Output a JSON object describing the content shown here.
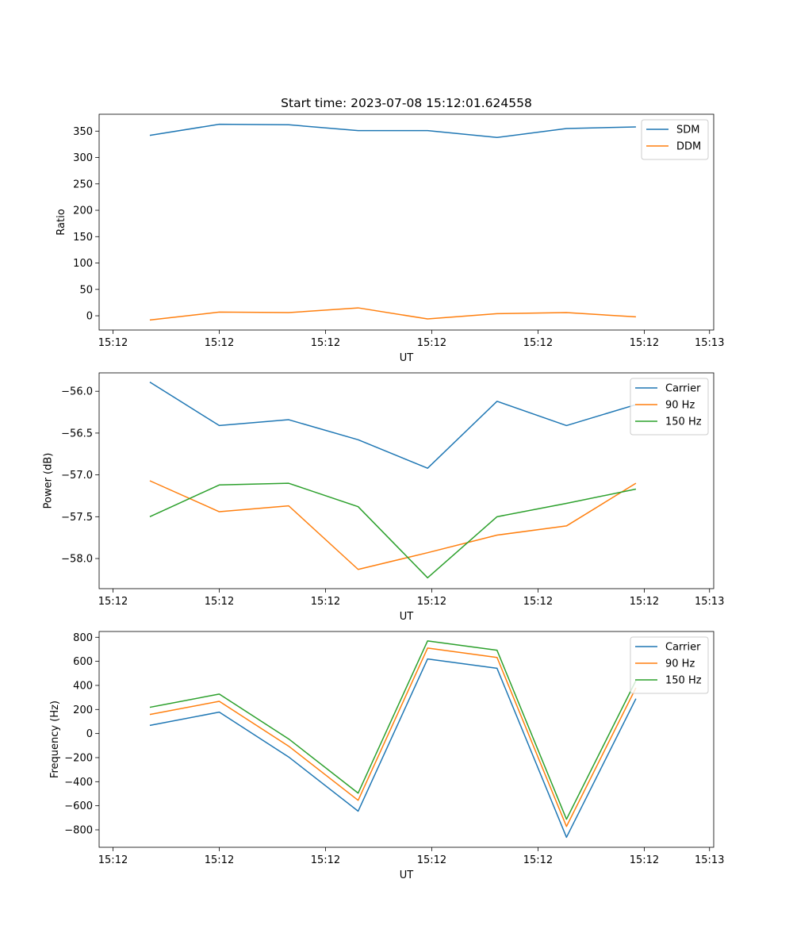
{
  "colors": {
    "blue": "#1f77b4",
    "orange": "#ff7f0e",
    "green": "#2ca02c"
  },
  "chart_data": [
    {
      "type": "line",
      "title": "Start time: 2023-07-08 15:12:01.624558",
      "xlabel": "UT",
      "ylabel": "Ratio",
      "x": [
        1,
        2,
        3,
        4,
        5,
        6,
        7,
        8
      ],
      "xlim": [
        0.27,
        9.12
      ],
      "xticks": [
        0.47,
        2.0,
        3.53,
        5.06,
        6.59,
        8.12,
        9.06
      ],
      "xticklabels": [
        "15:12",
        "15:12",
        "15:12",
        "15:12",
        "15:12",
        "15:12",
        "15:13"
      ],
      "ylim": [
        -27,
        382
      ],
      "yticks": [
        0,
        50,
        100,
        150,
        200,
        250,
        300,
        350
      ],
      "yticklabels": [
        "0",
        "50",
        "100",
        "150",
        "200",
        "250",
        "300",
        "350"
      ],
      "legend_position": "top-right",
      "series": [
        {
          "name": "SDM",
          "color": "blue",
          "values": [
            342,
            363,
            362,
            351,
            351,
            338,
            355,
            358
          ]
        },
        {
          "name": "DDM",
          "color": "orange",
          "values": [
            -8,
            7,
            6,
            15,
            -6,
            4,
            6,
            -2
          ]
        }
      ]
    },
    {
      "type": "line",
      "title": "",
      "xlabel": "UT",
      "ylabel": "Power (dB)",
      "x": [
        1,
        2,
        3,
        4,
        5,
        6,
        7,
        8
      ],
      "xlim": [
        0.27,
        9.12
      ],
      "xticks": [
        0.47,
        2.0,
        3.53,
        5.06,
        6.59,
        8.12,
        9.06
      ],
      "xticklabels": [
        "15:12",
        "15:12",
        "15:12",
        "15:12",
        "15:12",
        "15:12",
        "15:13"
      ],
      "ylim": [
        -58.36,
        -55.78
      ],
      "yticks": [
        -58.0,
        -57.5,
        -57.0,
        -56.5,
        -56.0
      ],
      "yticklabels": [
        "−58.0",
        "−57.5",
        "−57.0",
        "−56.5",
        "−56.0"
      ],
      "legend_position": "top-right",
      "series": [
        {
          "name": "Carrier",
          "color": "blue",
          "values": [
            -55.89,
            -56.41,
            -56.34,
            -56.58,
            -56.92,
            -56.12,
            -56.41,
            -56.16
          ]
        },
        {
          "name": "90 Hz",
          "color": "orange",
          "values": [
            -57.07,
            -57.44,
            -57.37,
            -58.13,
            -57.93,
            -57.72,
            -57.61,
            -57.1
          ]
        },
        {
          "name": "150 Hz",
          "color": "green",
          "values": [
            -57.5,
            -57.12,
            -57.1,
            -57.38,
            -58.23,
            -57.5,
            -57.34,
            -57.17
          ]
        }
      ]
    },
    {
      "type": "line",
      "title": "",
      "xlabel": "UT",
      "ylabel": "Frequency (Hz)",
      "x": [
        1,
        2,
        3,
        4,
        5,
        6,
        7,
        8
      ],
      "xlim": [
        0.27,
        9.12
      ],
      "xticks": [
        0.47,
        2.0,
        3.53,
        5.06,
        6.59,
        8.12,
        9.06
      ],
      "xticklabels": [
        "15:12",
        "15:12",
        "15:12",
        "15:12",
        "15:12",
        "15:12",
        "15:13"
      ],
      "ylim": [
        -945,
        848
      ],
      "yticks": [
        -800,
        -600,
        -400,
        -200,
        0,
        200,
        400,
        600,
        800
      ],
      "yticklabels": [
        "−800",
        "−600",
        "−400",
        "−200",
        "0",
        "200",
        "400",
        "600",
        "800"
      ],
      "legend_position": "top-right",
      "series": [
        {
          "name": "Carrier",
          "color": "blue",
          "values": [
            68,
            178,
            -195,
            -645,
            620,
            542,
            -862,
            290
          ]
        },
        {
          "name": "90 Hz",
          "color": "orange",
          "values": [
            158,
            268,
            -105,
            -555,
            710,
            632,
            -772,
            380
          ]
        },
        {
          "name": "150 Hz",
          "color": "green",
          "values": [
            218,
            328,
            -45,
            -495,
            770,
            692,
            -712,
            440
          ]
        }
      ]
    }
  ]
}
